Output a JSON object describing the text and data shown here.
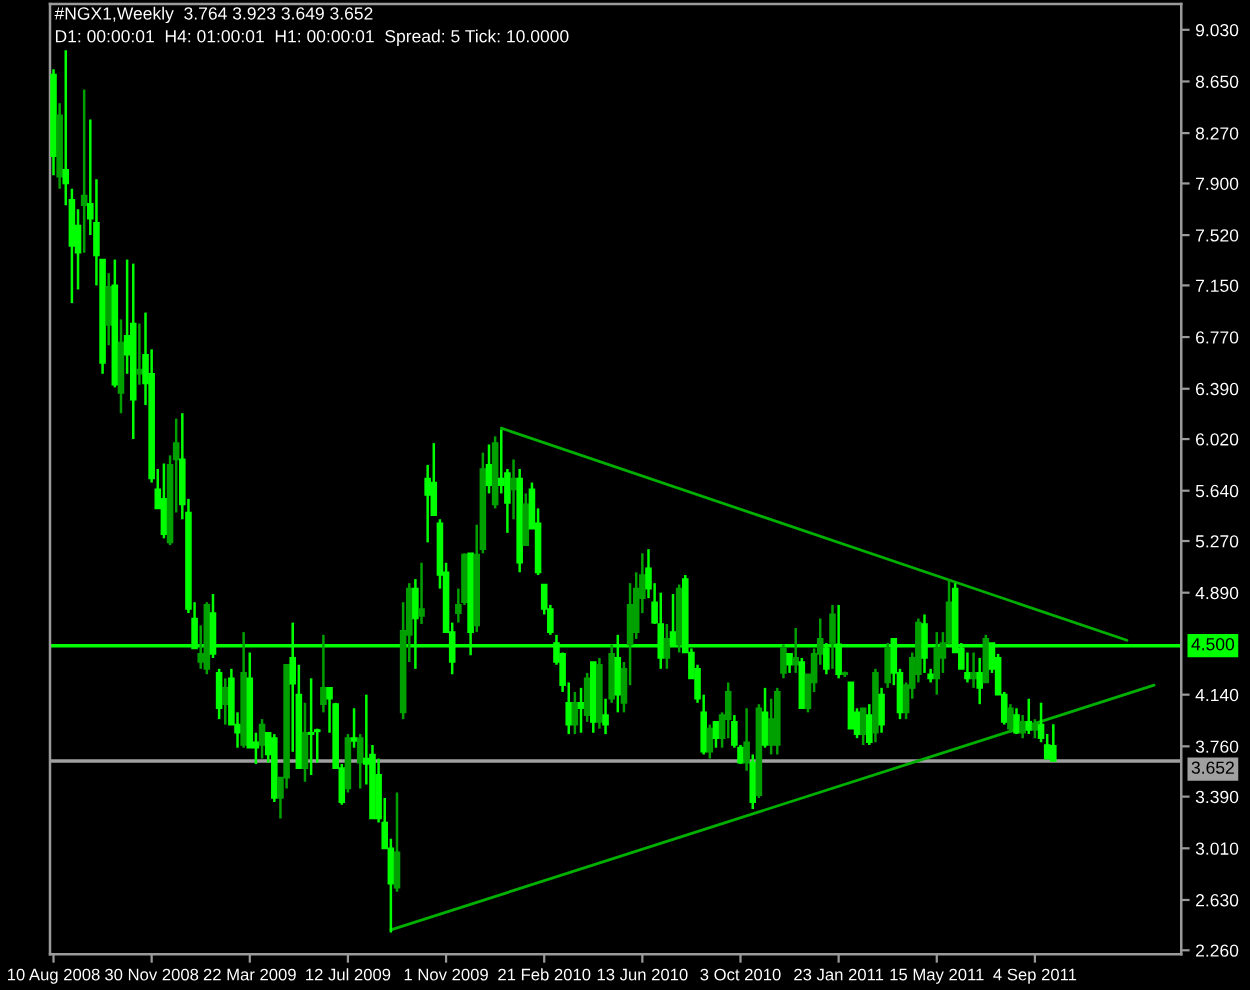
{
  "chart_data": {
    "type": "candlestick",
    "title": "#NGX1,Weekly  3.764 3.923 3.649 3.652",
    "subtitle": "D1: 00:00:01  H4: 01:00:01  H1: 00:00:01  Spread: 5 Tick: 10.0000",
    "series": [
      {
        "x": [
          "2008-08-10",
          "2008-08-17",
          "2008-08-24",
          "2008-08-31",
          "2008-09-07",
          "2008-09-14",
          "2008-09-21",
          "2008-09-28",
          "2008-10-05",
          "2008-10-12",
          "2008-10-19",
          "2008-10-26",
          "2008-11-02",
          "2008-11-09",
          "2008-11-16",
          "2008-11-23",
          "2008-11-30",
          "2008-12-07",
          "2008-12-14",
          "2008-12-21",
          "2008-12-28",
          "2009-01-04",
          "2009-01-11",
          "2009-01-18",
          "2009-01-25",
          "2009-02-01",
          "2009-02-08",
          "2009-02-15",
          "2009-02-22",
          "2009-03-01",
          "2009-03-08",
          "2009-03-15",
          "2009-03-22",
          "2009-03-29",
          "2009-04-05",
          "2009-04-12",
          "2009-04-19",
          "2009-04-26",
          "2009-05-03",
          "2009-05-10",
          "2009-05-17",
          "2009-05-24",
          "2009-05-31",
          "2009-06-07",
          "2009-06-14",
          "2009-06-21",
          "2009-06-28",
          "2009-07-05",
          "2009-07-12",
          "2009-07-19",
          "2009-07-26",
          "2009-08-02",
          "2009-08-09",
          "2009-08-16",
          "2009-08-23",
          "2009-08-30",
          "2009-09-06",
          "2009-09-13",
          "2009-09-20",
          "2009-09-27",
          "2009-10-04",
          "2009-10-11",
          "2009-10-18",
          "2009-10-25",
          "2009-11-01",
          "2009-11-08",
          "2009-11-15",
          "2009-11-22",
          "2009-11-29",
          "2009-12-06",
          "2009-12-13",
          "2009-12-20",
          "2009-12-27",
          "2010-01-03",
          "2010-01-10",
          "2010-01-17",
          "2010-01-24",
          "2010-01-31",
          "2010-02-07",
          "2010-02-14",
          "2010-02-21",
          "2010-02-28",
          "2010-03-07",
          "2010-03-14",
          "2010-03-21",
          "2010-03-28",
          "2010-04-04",
          "2010-04-11",
          "2010-04-18",
          "2010-04-25",
          "2010-05-02",
          "2010-05-09",
          "2010-05-16",
          "2010-05-23",
          "2010-05-30",
          "2010-06-06",
          "2010-06-13",
          "2010-06-20",
          "2010-06-27",
          "2010-07-04",
          "2010-07-11",
          "2010-07-18",
          "2010-07-25",
          "2010-08-01",
          "2010-08-08",
          "2010-08-15",
          "2010-08-22",
          "2010-08-29",
          "2010-09-05",
          "2010-09-12",
          "2010-09-19",
          "2010-09-26",
          "2010-10-03",
          "2010-10-10",
          "2010-10-17",
          "2010-10-24",
          "2010-10-31",
          "2010-11-07",
          "2010-11-14",
          "2010-11-21",
          "2010-11-28",
          "2010-12-05",
          "2010-12-12",
          "2010-12-19",
          "2010-12-26",
          "2011-01-02",
          "2011-01-09",
          "2011-01-16",
          "2011-01-23",
          "2011-01-30",
          "2011-02-06",
          "2011-02-13",
          "2011-02-20",
          "2011-02-27",
          "2011-03-06",
          "2011-03-13",
          "2011-03-20",
          "2011-03-27",
          "2011-04-03",
          "2011-04-10",
          "2011-04-17",
          "2011-04-24",
          "2011-05-01",
          "2011-05-08",
          "2011-05-15",
          "2011-05-22",
          "2011-05-29",
          "2011-06-05",
          "2011-06-12",
          "2011-06-19",
          "2011-06-26",
          "2011-07-03",
          "2011-07-10",
          "2011-07-17",
          "2011-07-24",
          "2011-07-31",
          "2011-08-07",
          "2011-08-14",
          "2011-08-21",
          "2011-08-28",
          "2011-09-04",
          "2011-09-11",
          "2011-09-18",
          "2011-09-25"
        ],
        "ohlc": [
          [
            8.7,
            8.74,
            7.96,
            8.1
          ],
          [
            7.95,
            8.49,
            7.86,
            8.4
          ],
          [
            8.0,
            8.88,
            7.74,
            7.9
          ],
          [
            7.78,
            7.86,
            7.02,
            7.44
          ],
          [
            7.59,
            7.71,
            7.12,
            7.39
          ],
          [
            7.74,
            8.59,
            7.39,
            7.81
          ],
          [
            7.75,
            8.37,
            7.52,
            7.64
          ],
          [
            7.61,
            7.93,
            7.15,
            7.37
          ],
          [
            7.34,
            7.34,
            6.5,
            6.58
          ],
          [
            6.86,
            7.24,
            6.71,
            7.14
          ],
          [
            7.15,
            7.34,
            6.4,
            6.42
          ],
          [
            6.36,
            6.9,
            6.21,
            6.73
          ],
          [
            6.78,
            7.34,
            6.5,
            6.64
          ],
          [
            6.87,
            7.31,
            6.02,
            6.31
          ],
          [
            6.5,
            6.87,
            6.42,
            6.53
          ],
          [
            6.64,
            6.95,
            6.27,
            6.43
          ],
          [
            6.5,
            6.68,
            5.7,
            5.73
          ],
          [
            5.65,
            5.8,
            5.51,
            5.51
          ],
          [
            5.58,
            5.84,
            5.29,
            5.32
          ],
          [
            5.26,
            5.9,
            5.24,
            5.83
          ],
          [
            5.87,
            6.17,
            5.48,
            5.99
          ],
          [
            5.87,
            6.21,
            5.43,
            5.54
          ],
          [
            5.48,
            5.58,
            4.74,
            4.77
          ],
          [
            4.7,
            4.82,
            4.48,
            4.48
          ],
          [
            4.38,
            4.65,
            4.33,
            4.44
          ],
          [
            4.33,
            4.82,
            4.29,
            4.8
          ],
          [
            4.74,
            4.88,
            4.41,
            4.44
          ],
          [
            4.3,
            4.33,
            3.96,
            4.04
          ],
          [
            4.07,
            4.26,
            3.92,
            4.19
          ],
          [
            4.26,
            4.33,
            3.92,
            3.92
          ],
          [
            3.92,
            4.01,
            3.75,
            3.86
          ],
          [
            3.77,
            4.6,
            3.75,
            4.3
          ],
          [
            4.26,
            4.45,
            3.75,
            3.75
          ],
          [
            3.79,
            3.86,
            3.63,
            3.75
          ],
          [
            3.77,
            3.96,
            3.67,
            3.92
          ],
          [
            3.86,
            3.86,
            3.64,
            3.7
          ],
          [
            3.82,
            3.85,
            3.35,
            3.38
          ],
          [
            3.38,
            3.53,
            3.23,
            3.53
          ],
          [
            3.53,
            4.36,
            3.45,
            4.36
          ],
          [
            4.41,
            4.67,
            3.72,
            4.22
          ],
          [
            4.14,
            4.36,
            3.6,
            3.6
          ],
          [
            3.6,
            4.08,
            3.5,
            3.86
          ],
          [
            3.86,
            4.26,
            3.55,
            3.85
          ],
          [
            3.88,
            3.89,
            3.64,
            3.87
          ],
          [
            4.07,
            4.58,
            4.01,
            4.19
          ],
          [
            4.19,
            4.19,
            3.86,
            4.11
          ],
          [
            4.07,
            4.08,
            3.6,
            3.6
          ],
          [
            3.6,
            3.63,
            3.33,
            3.35
          ],
          [
            3.45,
            3.85,
            3.42,
            3.82
          ],
          [
            3.82,
            4.04,
            3.75,
            3.8
          ],
          [
            3.64,
            3.85,
            3.45,
            3.82
          ],
          [
            3.67,
            4.14,
            3.48,
            3.63
          ],
          [
            3.7,
            3.77,
            3.23,
            3.23
          ],
          [
            3.55,
            3.67,
            3.2,
            3.23
          ],
          [
            3.2,
            3.38,
            3.01,
            3.01
          ],
          [
            3.01,
            3.08,
            2.39,
            2.75
          ],
          [
            2.72,
            3.42,
            2.69,
            2.98
          ],
          [
            4.01,
            4.82,
            3.96,
            4.61
          ],
          [
            4.58,
            4.96,
            4.38,
            4.92
          ],
          [
            4.92,
            4.99,
            4.33,
            4.7
          ],
          [
            4.72,
            5.11,
            4.66,
            4.77
          ],
          [
            5.73,
            5.83,
            5.26,
            5.61
          ],
          [
            5.7,
            5.99,
            5.46,
            5.46
          ],
          [
            5.4,
            5.43,
            4.92,
            5.02
          ],
          [
            5.04,
            5.11,
            4.6,
            4.6
          ],
          [
            4.6,
            4.67,
            4.29,
            4.38
          ],
          [
            4.74,
            4.92,
            4.67,
            4.8
          ],
          [
            4.82,
            5.18,
            4.8,
            5.17
          ],
          [
            5.18,
            5.18,
            4.43,
            4.6
          ],
          [
            4.65,
            5.39,
            4.6,
            5.17
          ],
          [
            5.21,
            5.92,
            5.18,
            5.8
          ],
          [
            5.83,
            5.98,
            5.62,
            5.68
          ],
          [
            5.54,
            6.04,
            5.51,
            5.99
          ],
          [
            5.73,
            6.09,
            5.62,
            5.68
          ],
          [
            5.77,
            5.8,
            5.33,
            5.55
          ],
          [
            5.65,
            5.87,
            5.43,
            5.73
          ],
          [
            5.73,
            5.8,
            5.04,
            5.11
          ],
          [
            5.24,
            5.62,
            5.24,
            5.54
          ],
          [
            5.65,
            5.7,
            5.36,
            5.36
          ],
          [
            5.4,
            5.51,
            5.02,
            5.04
          ],
          [
            4.95,
            4.95,
            4.73,
            4.77
          ],
          [
            4.77,
            4.8,
            4.58,
            4.6
          ],
          [
            4.52,
            4.58,
            4.36,
            4.38
          ],
          [
            4.44,
            4.45,
            4.16,
            4.21
          ],
          [
            4.08,
            4.23,
            3.85,
            3.92
          ],
          [
            3.92,
            4.16,
            3.85,
            4.08
          ],
          [
            4.08,
            4.19,
            3.86,
            4.04
          ],
          [
            3.99,
            4.3,
            3.94,
            4.26
          ],
          [
            4.38,
            4.38,
            3.86,
            3.94
          ],
          [
            3.94,
            4.41,
            3.89,
            4.36
          ],
          [
            3.99,
            4.11,
            3.85,
            3.92
          ],
          [
            4.11,
            4.51,
            4.08,
            4.44
          ],
          [
            4.41,
            4.58,
            4.01,
            4.14
          ],
          [
            4.08,
            4.38,
            4.01,
            4.33
          ],
          [
            4.51,
            4.96,
            4.21,
            4.8
          ],
          [
            4.6,
            5.04,
            4.55,
            4.92
          ],
          [
            4.85,
            5.18,
            4.74,
            5.02
          ],
          [
            5.07,
            5.21,
            4.85,
            4.92
          ],
          [
            4.82,
            4.96,
            4.66,
            4.67
          ],
          [
            4.66,
            4.89,
            4.33,
            4.41
          ],
          [
            4.41,
            4.66,
            4.33,
            4.55
          ],
          [
            4.6,
            4.88,
            4.51,
            4.51
          ],
          [
            4.51,
            4.95,
            4.45,
            4.92
          ],
          [
            4.99,
            5.02,
            4.45,
            4.45
          ],
          [
            4.45,
            4.48,
            4.26,
            4.26
          ],
          [
            4.33,
            4.36,
            4.08,
            4.11
          ],
          [
            4.01,
            4.14,
            3.7,
            3.72
          ],
          [
            3.72,
            3.92,
            3.67,
            3.89
          ],
          [
            3.94,
            3.94,
            3.75,
            3.82
          ],
          [
            3.82,
            4.01,
            3.75,
            3.99
          ],
          [
            3.96,
            4.23,
            3.82,
            4.16
          ],
          [
            3.94,
            3.99,
            3.75,
            3.77
          ],
          [
            3.75,
            3.77,
            3.63,
            3.64
          ],
          [
            3.64,
            4.04,
            3.58,
            3.79
          ],
          [
            3.64,
            3.7,
            3.3,
            3.35
          ],
          [
            3.4,
            4.07,
            3.38,
            4.04
          ],
          [
            4.01,
            4.19,
            3.75,
            3.77
          ],
          [
            3.77,
            4.11,
            3.7,
            3.96
          ],
          [
            3.77,
            4.19,
            3.7,
            4.16
          ],
          [
            4.3,
            4.51,
            4.26,
            4.48
          ],
          [
            4.44,
            4.44,
            4.3,
            4.36
          ],
          [
            4.36,
            4.63,
            4.3,
            4.41
          ],
          [
            4.38,
            4.41,
            4.04,
            4.04
          ],
          [
            4.04,
            4.29,
            4.01,
            4.29
          ],
          [
            4.23,
            4.48,
            4.16,
            4.44
          ],
          [
            4.44,
            4.7,
            4.36,
            4.55
          ],
          [
            4.48,
            4.52,
            4.29,
            4.33
          ],
          [
            4.52,
            4.8,
            4.33,
            4.73
          ],
          [
            4.51,
            4.8,
            4.26,
            4.29
          ],
          [
            4.29,
            4.31,
            4.27,
            4.3
          ],
          [
            4.23,
            4.23,
            3.89,
            3.89
          ],
          [
            4.01,
            4.04,
            3.82,
            3.85
          ],
          [
            3.85,
            4.04,
            3.77,
            4.04
          ],
          [
            3.99,
            4.07,
            3.77,
            3.79
          ],
          [
            3.86,
            4.33,
            3.79,
            4.3
          ],
          [
            4.14,
            4.19,
            3.86,
            3.92
          ],
          [
            4.23,
            4.52,
            4.19,
            4.48
          ],
          [
            4.55,
            4.55,
            4.21,
            4.3
          ],
          [
            4.3,
            4.33,
            3.96,
            4.01
          ],
          [
            4.01,
            4.23,
            3.96,
            4.21
          ],
          [
            4.19,
            4.45,
            4.11,
            4.41
          ],
          [
            4.29,
            4.7,
            4.23,
            4.67
          ],
          [
            4.66,
            4.73,
            4.3,
            4.41
          ],
          [
            4.29,
            4.33,
            4.23,
            4.26
          ],
          [
            4.26,
            4.6,
            4.14,
            4.48
          ],
          [
            4.41,
            4.6,
            4.3,
            4.52
          ],
          [
            4.52,
            4.99,
            4.51,
            4.82
          ],
          [
            4.92,
            4.96,
            4.45,
            4.45
          ],
          [
            4.48,
            4.52,
            4.33,
            4.33
          ],
          [
            4.3,
            4.45,
            4.23,
            4.26
          ],
          [
            4.26,
            4.45,
            4.19,
            4.3
          ],
          [
            4.3,
            4.41,
            4.07,
            4.19
          ],
          [
            4.23,
            4.58,
            4.23,
            4.55
          ],
          [
            4.52,
            4.52,
            4.3,
            4.33
          ],
          [
            4.41,
            4.44,
            4.14,
            4.14
          ],
          [
            4.14,
            4.16,
            3.92,
            3.94
          ],
          [
            3.89,
            4.07,
            3.86,
            4.04
          ],
          [
            3.99,
            4.04,
            3.85,
            3.86
          ],
          [
            3.86,
            3.99,
            3.82,
            3.94
          ],
          [
            3.94,
            4.11,
            3.85,
            3.88
          ],
          [
            3.88,
            3.96,
            3.82,
            3.92
          ],
          [
            3.92,
            4.08,
            3.79,
            3.82
          ],
          [
            3.77,
            3.85,
            3.67,
            3.67
          ],
          [
            3.764,
            3.923,
            3.649,
            3.652
          ]
        ],
        "colors": [
          "#00ff00",
          "#00a000",
          "#00ff00",
          "#00ff00",
          "#00ff00",
          "#00a000",
          "#00ff00",
          "#00ff00",
          "#00ff00",
          "#00a000",
          "#00ff00",
          "#00a000",
          "#00ff00",
          "#00ff00",
          "#00a000",
          "#00ff00",
          "#00ff00",
          "#00ff00",
          "#00ff00",
          "#00a000",
          "#00a000",
          "#00ff00",
          "#00ff00",
          "#00ff00",
          "#00a000",
          "#00a000",
          "#00ff00",
          "#00ff00",
          "#00a000",
          "#00ff00",
          "#00ff00",
          "#00a000",
          "#00ff00",
          "#00ff00",
          "#00a000",
          "#00ff00",
          "#00ff00",
          "#00a000",
          "#00a000",
          "#00ff00",
          "#00ff00",
          "#00a000",
          "#00ff00",
          "#00ff00",
          "#00a000",
          "#00ff00",
          "#00ff00",
          "#00ff00",
          "#00a000",
          "#00ff00",
          "#00a000",
          "#00ff00",
          "#00ff00",
          "#00ff00",
          "#00ff00",
          "#00ff00",
          "#00a000",
          "#00a000",
          "#00a000",
          "#00ff00",
          "#00a000",
          "#00ff00",
          "#00ff00",
          "#00ff00",
          "#00ff00",
          "#00ff00",
          "#00a000",
          "#00a000",
          "#00ff00",
          "#00a000",
          "#00a000",
          "#00ff00",
          "#00a000",
          "#00ff00",
          "#00ff00",
          "#00a000",
          "#00ff00",
          "#00a000",
          "#00ff00",
          "#00ff00",
          "#00ff00",
          "#00ff00",
          "#00ff00",
          "#00ff00",
          "#00ff00",
          "#00a000",
          "#00ff00",
          "#00a000",
          "#00ff00",
          "#00a000",
          "#00ff00",
          "#00a000",
          "#00ff00",
          "#00a000",
          "#00a000",
          "#00a000",
          "#00a000",
          "#00ff00",
          "#00ff00",
          "#00ff00",
          "#00a000",
          "#00ff00",
          "#00a000",
          "#00ff00",
          "#00ff00",
          "#00ff00",
          "#00ff00",
          "#00a000",
          "#00ff00",
          "#00a000",
          "#00a000",
          "#00ff00",
          "#00ff00",
          "#00a000",
          "#00ff00",
          "#00a000",
          "#00ff00",
          "#00a000",
          "#00a000",
          "#00a000",
          "#00ff00",
          "#00a000",
          "#00ff00",
          "#00a000",
          "#00a000",
          "#00a000",
          "#00ff00",
          "#00a000",
          "#00ff00",
          "#00a000",
          "#00ff00",
          "#00ff00",
          "#00a000",
          "#00ff00",
          "#00a000",
          "#00ff00",
          "#00a000",
          "#00ff00",
          "#00ff00",
          "#00a000",
          "#00a000",
          "#00a000",
          "#00ff00",
          "#00ff00",
          "#00a000",
          "#00a000",
          "#00a000",
          "#00ff00",
          "#00ff00",
          "#00ff00",
          "#00a000",
          "#00ff00",
          "#00a000",
          "#00ff00",
          "#00ff00",
          "#00ff00",
          "#00a000",
          "#00ff00",
          "#00a000",
          "#00ff00",
          "#00a000",
          "#00ff00",
          "#00ff00",
          "#00ff00"
        ]
      },
      {
        "type": "line",
        "color": "#00b000",
        "x": [
          "2010-01-03",
          "2011-12-18"
        ],
        "values": [
          6.1,
          4.54
        ]
      },
      {
        "type": "line",
        "color": "#00b000",
        "x": [
          "2009-08-30",
          "2012-01-18"
        ],
        "values": [
          2.41,
          4.21
        ]
      }
    ],
    "ref_lines": [
      {
        "axis": "y",
        "value": 4.5,
        "label": "4.500",
        "color": "#00ff00"
      },
      {
        "axis": "y",
        "value": 3.652,
        "label": "3.652",
        "color": "#a0a0a0"
      }
    ],
    "xlim": [
      "2008-08-06",
      "2012-02-18"
    ],
    "xticks": [
      {
        "value": "2008-08-10",
        "label": "10 Aug 2008"
      },
      {
        "value": "2008-11-30",
        "label": "30 Nov 2008"
      },
      {
        "value": "2009-03-22",
        "label": "22 Mar 2009"
      },
      {
        "value": "2009-07-12",
        "label": "12 Jul 2009"
      },
      {
        "value": "2009-11-01",
        "label": "1 Nov 2009"
      },
      {
        "value": "2010-02-21",
        "label": "21 Feb 2010"
      },
      {
        "value": "2010-06-13",
        "label": "13 Jun 2010"
      },
      {
        "value": "2010-10-03",
        "label": "3 Oct 2010"
      },
      {
        "value": "2011-01-23",
        "label": "23 Jan 2011"
      },
      {
        "value": "2011-05-15",
        "label": "15 May 2011"
      },
      {
        "value": "2011-09-04",
        "label": "4 Sep 2011"
      }
    ],
    "ylim": [
      2.23,
      9.22
    ],
    "yticks": [
      {
        "value": 9.03,
        "label": "9.030"
      },
      {
        "value": 8.65,
        "label": "8.650"
      },
      {
        "value": 8.27,
        "label": "8.270"
      },
      {
        "value": 7.9,
        "label": "7.900"
      },
      {
        "value": 7.52,
        "label": "7.520"
      },
      {
        "value": 7.15,
        "label": "7.150"
      },
      {
        "value": 6.77,
        "label": "6.770"
      },
      {
        "value": 6.39,
        "label": "6.390"
      },
      {
        "value": 6.02,
        "label": "6.020"
      },
      {
        "value": 5.64,
        "label": "5.640"
      },
      {
        "value": 5.27,
        "label": "5.270"
      },
      {
        "value": 4.89,
        "label": "4.890"
      },
      {
        "value": 4.14,
        "label": "4.140"
      },
      {
        "value": 3.76,
        "label": "3.760"
      },
      {
        "value": 3.39,
        "label": "3.390"
      },
      {
        "value": 3.01,
        "label": "3.010"
      },
      {
        "value": 2.63,
        "label": "2.630"
      },
      {
        "value": 2.26,
        "label": "2.260"
      }
    ]
  }
}
